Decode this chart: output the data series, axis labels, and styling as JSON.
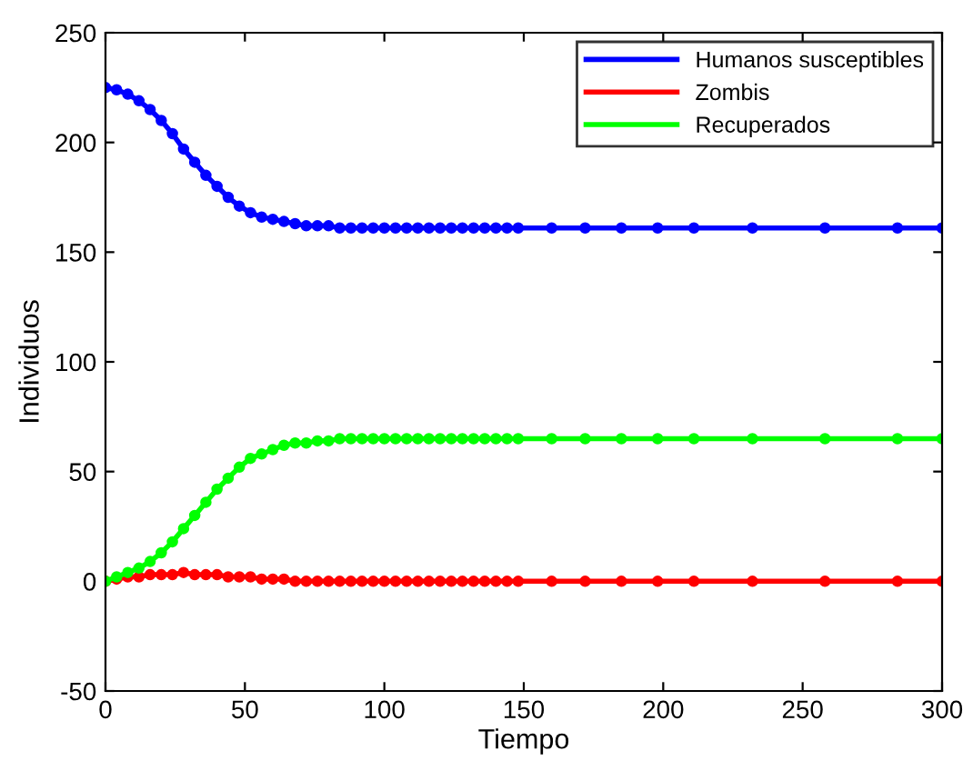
{
  "chart_data": {
    "type": "line",
    "xlabel": "Tiempo",
    "ylabel": "Individuos",
    "x": [
      0,
      4,
      8,
      12,
      16,
      20,
      24,
      28,
      32,
      36,
      40,
      44,
      48,
      52,
      56,
      60,
      64,
      68,
      72,
      76,
      80,
      84,
      88,
      92,
      96,
      100,
      104,
      108,
      112,
      116,
      120,
      124,
      128,
      132,
      136,
      140,
      144,
      148,
      160,
      172,
      185,
      198,
      211,
      232,
      258,
      284,
      300
    ],
    "series": [
      {
        "name": "Humanos susceptibles",
        "color": "#0000ff",
        "values": [
          225,
          224,
          222,
          219,
          215,
          210,
          204,
          197,
          191,
          185,
          180,
          175,
          171,
          168,
          166,
          165,
          164,
          163,
          162,
          162,
          162,
          161,
          161,
          161,
          161,
          161,
          161,
          161,
          161,
          161,
          161,
          161,
          161,
          161,
          161,
          161,
          161,
          161,
          161,
          161,
          161,
          161,
          161,
          161,
          161,
          161,
          161
        ]
      },
      {
        "name": "Zombis",
        "color": "#ff0000",
        "values": [
          0,
          1,
          2,
          2,
          3,
          3,
          3,
          4,
          3,
          3,
          3,
          2,
          2,
          2,
          1,
          1,
          1,
          0,
          0,
          0,
          0,
          0,
          0,
          0,
          0,
          0,
          0,
          0,
          0,
          0,
          0,
          0,
          0,
          0,
          0,
          0,
          0,
          0,
          0,
          0,
          0,
          0,
          0,
          0,
          0,
          0,
          0
        ]
      },
      {
        "name": "Recuperados",
        "color": "#00ff00",
        "values": [
          0,
          2,
          4,
          6,
          9,
          13,
          18,
          24,
          30,
          36,
          42,
          47,
          52,
          56,
          58,
          60,
          62,
          63,
          63,
          64,
          64,
          65,
          65,
          65,
          65,
          65,
          65,
          65,
          65,
          65,
          65,
          65,
          65,
          65,
          65,
          65,
          65,
          65,
          65,
          65,
          65,
          65,
          65,
          65,
          65,
          65,
          65
        ]
      }
    ],
    "xlim": [
      0,
      300
    ],
    "xticks": [
      0,
      50,
      100,
      150,
      200,
      250,
      300
    ],
    "ylim": [
      -50,
      250
    ],
    "yticks": [
      -50,
      0,
      50,
      100,
      150,
      200,
      250
    ],
    "legend": "top right",
    "marker": "circle",
    "line_style": "solid",
    "grid": false
  }
}
